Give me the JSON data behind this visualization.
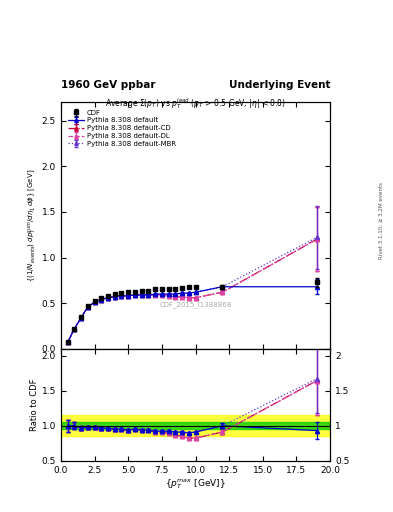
{
  "title_left": "1960 GeV ppbar",
  "title_right": "Underlying Event",
  "subtitle": "Average $\\Sigma(p_T)$ vs $p_T^{lead}$ ($p_T$ > 0.5 GeV, $|\\eta|$ < 0.8)",
  "watermark": "CDF_2015_I1388868",
  "right_label": "Rivet 3.1.10; ≥ 3.2M events",
  "xlabel": "$\\{p_T^{max}$ [GeV]$\\}$",
  "ylabel": "$\\{(1/N_{events})\\;dp_T^{sum}/d\\eta_1\\,d\\phi\\}$ [GeV]",
  "ylabel_ratio": "Ratio to CDF",
  "cdf_x": [
    0.5,
    1.0,
    1.5,
    2.0,
    2.5,
    3.0,
    3.5,
    4.0,
    4.5,
    5.0,
    5.5,
    6.0,
    6.5,
    7.0,
    7.5,
    8.0,
    8.5,
    9.0,
    9.5,
    10.0,
    12.0,
    19.0
  ],
  "cdf_y": [
    0.07,
    0.22,
    0.35,
    0.47,
    0.52,
    0.56,
    0.58,
    0.6,
    0.61,
    0.62,
    0.62,
    0.63,
    0.63,
    0.65,
    0.65,
    0.65,
    0.66,
    0.67,
    0.68,
    0.68,
    0.68,
    0.73
  ],
  "cdf_yerr": [
    0.005,
    0.01,
    0.01,
    0.01,
    0.01,
    0.01,
    0.01,
    0.01,
    0.01,
    0.01,
    0.01,
    0.01,
    0.01,
    0.01,
    0.01,
    0.01,
    0.01,
    0.01,
    0.01,
    0.01,
    0.02,
    0.05
  ],
  "py_default_x": [
    0.5,
    1.0,
    1.5,
    2.0,
    2.5,
    3.0,
    3.5,
    4.0,
    4.5,
    5.0,
    5.5,
    6.0,
    6.5,
    7.0,
    7.5,
    8.0,
    8.5,
    9.0,
    9.5,
    10.0,
    12.0,
    19.0
  ],
  "py_default_y": [
    0.07,
    0.22,
    0.34,
    0.46,
    0.51,
    0.54,
    0.56,
    0.57,
    0.58,
    0.58,
    0.59,
    0.59,
    0.59,
    0.6,
    0.6,
    0.6,
    0.6,
    0.61,
    0.61,
    0.62,
    0.68,
    0.68
  ],
  "py_default_yerr": [
    0.003,
    0.005,
    0.005,
    0.005,
    0.005,
    0.005,
    0.005,
    0.005,
    0.005,
    0.005,
    0.005,
    0.005,
    0.005,
    0.005,
    0.005,
    0.005,
    0.005,
    0.005,
    0.005,
    0.005,
    0.01,
    0.08
  ],
  "py_cd_x": [
    0.5,
    1.0,
    1.5,
    2.0,
    2.5,
    3.0,
    3.5,
    4.0,
    4.5,
    5.0,
    5.5,
    6.0,
    6.5,
    7.0,
    7.5,
    8.0,
    8.5,
    9.0,
    9.5,
    10.0,
    12.0,
    19.0
  ],
  "py_cd_y": [
    0.07,
    0.22,
    0.34,
    0.46,
    0.51,
    0.54,
    0.56,
    0.57,
    0.58,
    0.58,
    0.59,
    0.59,
    0.59,
    0.59,
    0.59,
    0.58,
    0.57,
    0.57,
    0.56,
    0.56,
    0.62,
    1.2
  ],
  "py_cd_yerr": [
    0.003,
    0.005,
    0.005,
    0.005,
    0.005,
    0.005,
    0.005,
    0.005,
    0.005,
    0.005,
    0.005,
    0.005,
    0.005,
    0.005,
    0.005,
    0.005,
    0.005,
    0.005,
    0.005,
    0.005,
    0.01,
    0.35
  ],
  "py_dl_x": [
    0.5,
    1.0,
    1.5,
    2.0,
    2.5,
    3.0,
    3.5,
    4.0,
    4.5,
    5.0,
    5.5,
    6.0,
    6.5,
    7.0,
    7.5,
    8.0,
    8.5,
    9.0,
    9.5,
    10.0,
    12.0,
    19.0
  ],
  "py_dl_y": [
    0.07,
    0.22,
    0.34,
    0.46,
    0.51,
    0.54,
    0.56,
    0.57,
    0.58,
    0.58,
    0.59,
    0.59,
    0.59,
    0.59,
    0.59,
    0.58,
    0.57,
    0.57,
    0.56,
    0.56,
    0.62,
    1.2
  ],
  "py_dl_yerr": [
    0.003,
    0.005,
    0.005,
    0.005,
    0.005,
    0.005,
    0.005,
    0.005,
    0.005,
    0.005,
    0.005,
    0.005,
    0.005,
    0.005,
    0.005,
    0.005,
    0.005,
    0.005,
    0.005,
    0.005,
    0.01,
    0.35
  ],
  "py_mbr_x": [
    0.5,
    1.0,
    1.5,
    2.0,
    2.5,
    3.0,
    3.5,
    4.0,
    4.5,
    5.0,
    5.5,
    6.0,
    6.5,
    7.0,
    7.5,
    8.0,
    8.5,
    9.0,
    9.5,
    10.0,
    12.0,
    19.0
  ],
  "py_mbr_y": [
    0.07,
    0.22,
    0.34,
    0.46,
    0.51,
    0.54,
    0.56,
    0.57,
    0.58,
    0.58,
    0.59,
    0.59,
    0.59,
    0.6,
    0.6,
    0.6,
    0.6,
    0.61,
    0.61,
    0.62,
    0.68,
    1.22
  ],
  "py_mbr_yerr": [
    0.003,
    0.005,
    0.005,
    0.005,
    0.005,
    0.005,
    0.005,
    0.005,
    0.005,
    0.005,
    0.005,
    0.005,
    0.005,
    0.005,
    0.005,
    0.005,
    0.005,
    0.005,
    0.005,
    0.005,
    0.01,
    0.35
  ],
  "xlim": [
    0,
    20
  ],
  "ylim_main": [
    0,
    2.7
  ],
  "ylim_ratio": [
    0.5,
    2.1
  ],
  "color_default": "#0000cc",
  "color_cd": "#cc0033",
  "color_dl": "#dd44aa",
  "color_mbr": "#6633cc",
  "green_band_halfwidth": 0.05,
  "yellow_band_halfwidth": 0.15
}
